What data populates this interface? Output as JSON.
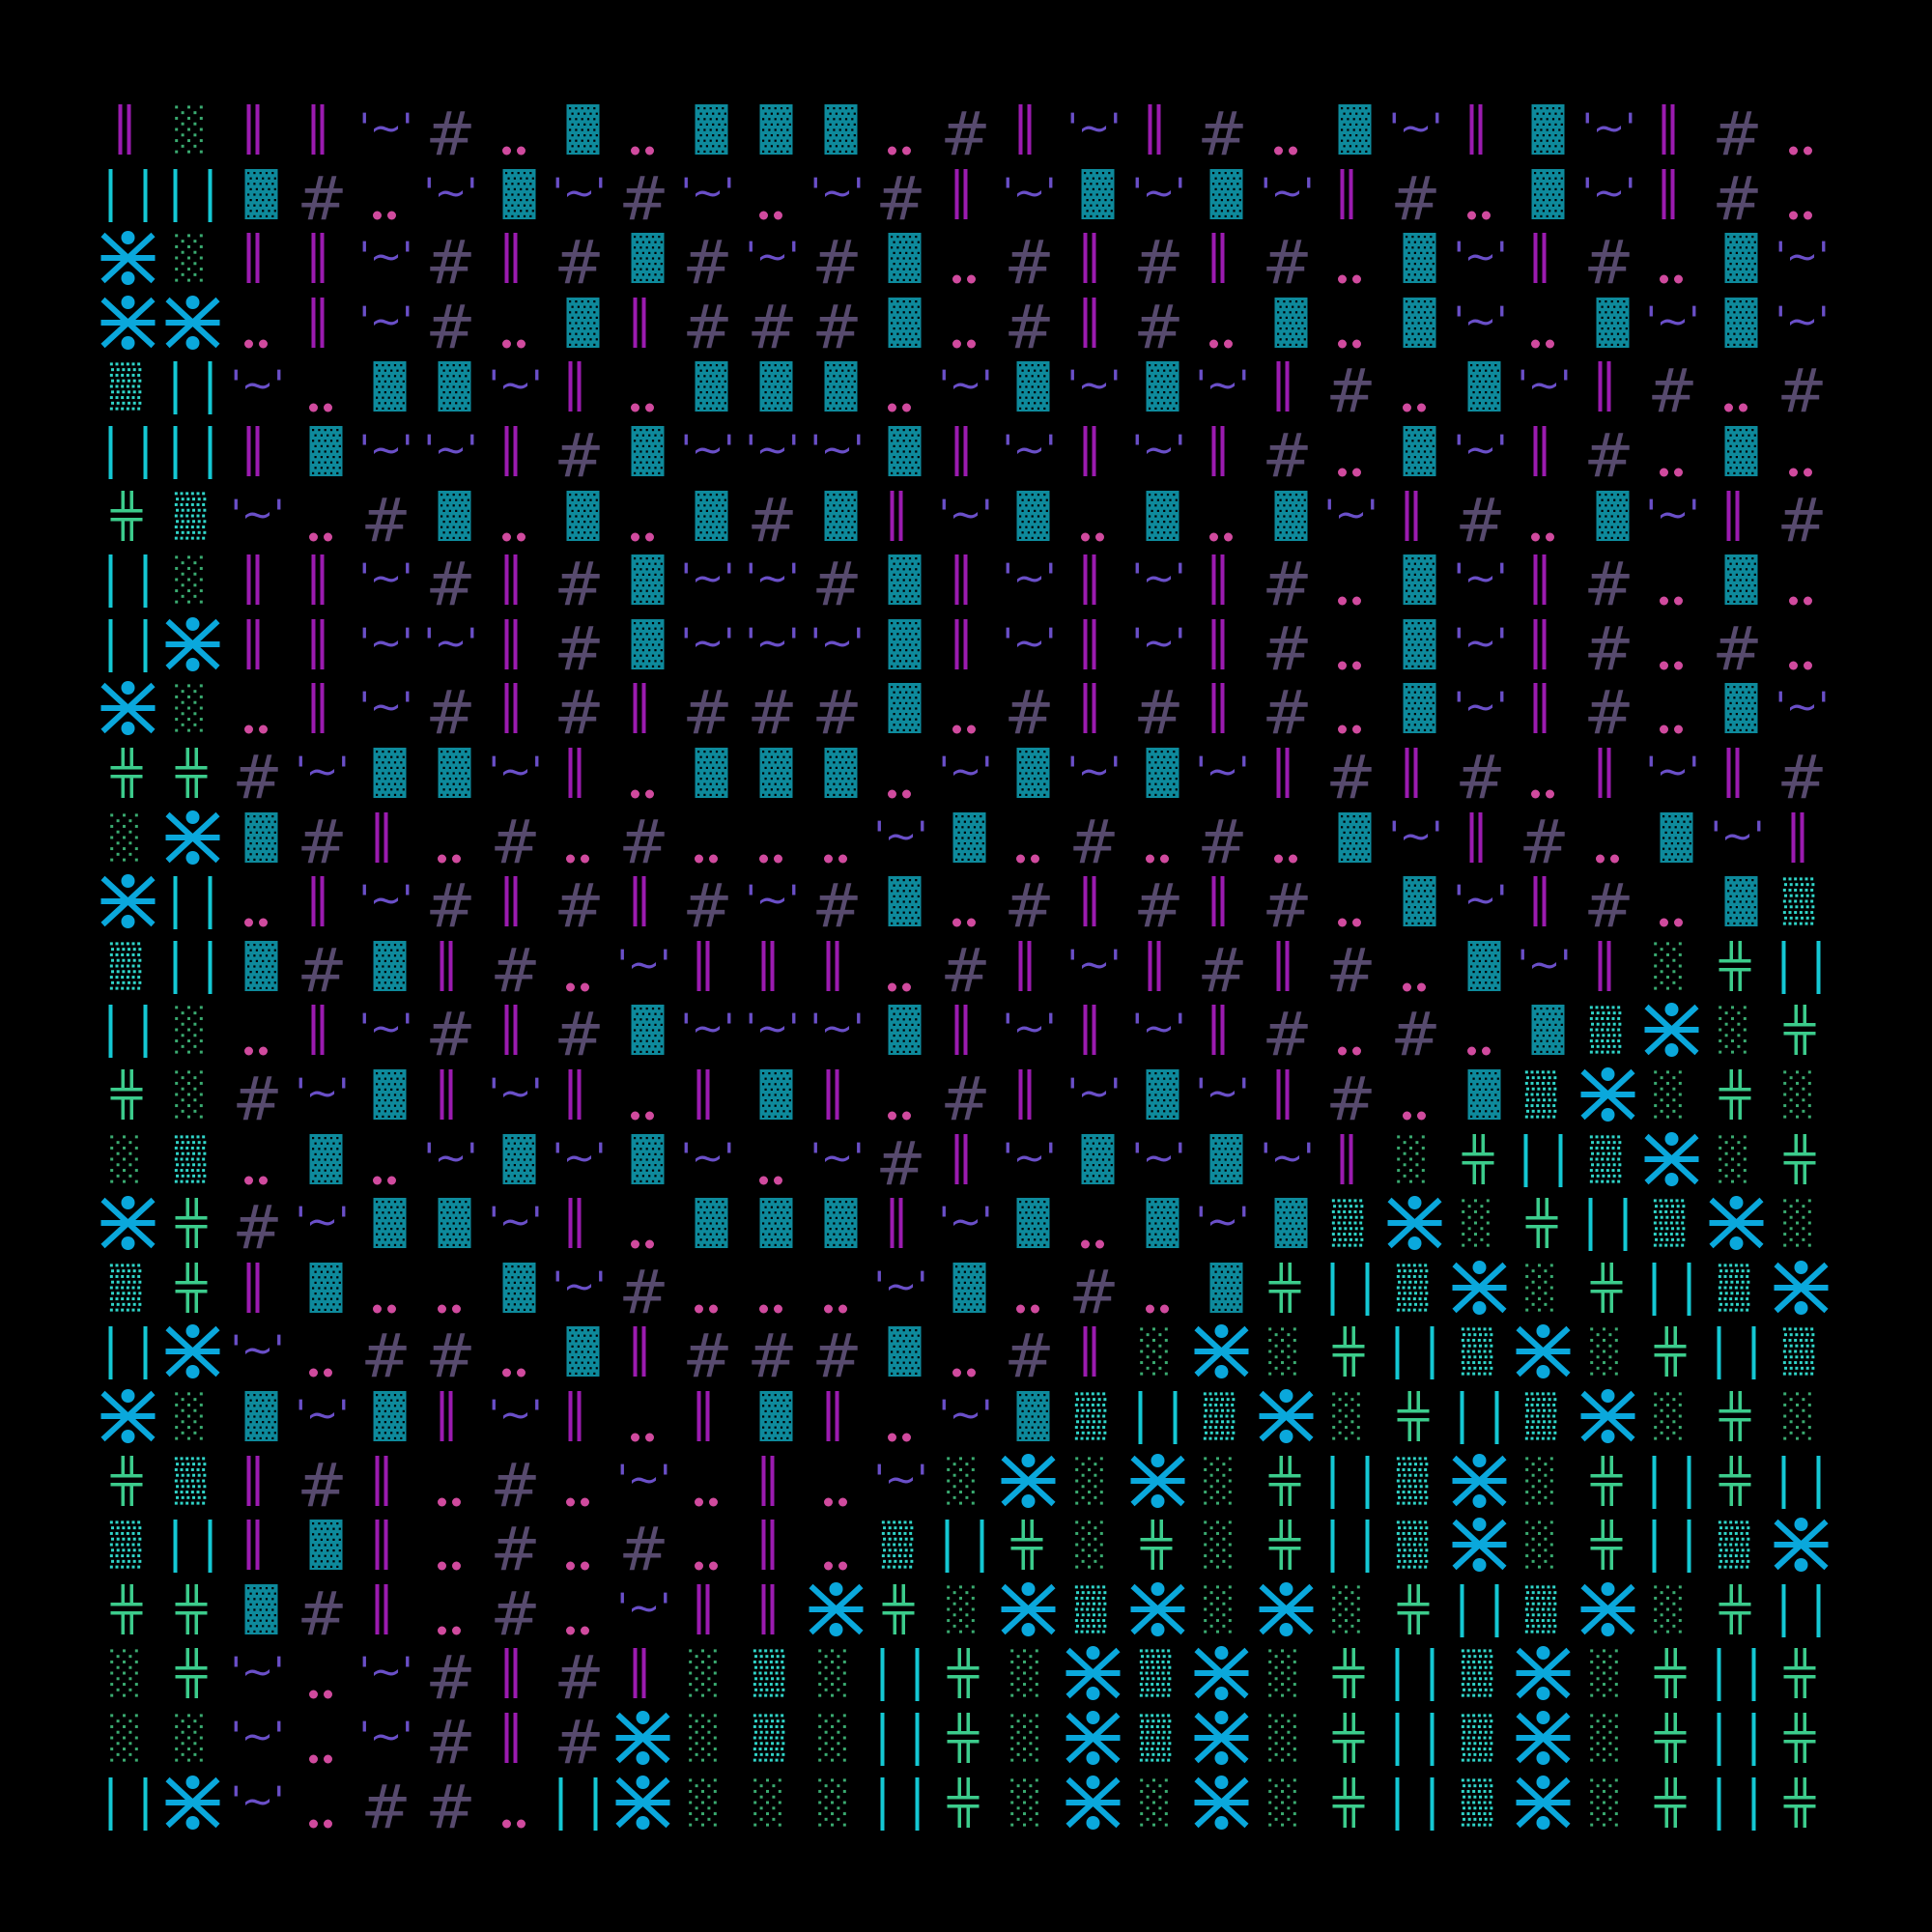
{
  "palette": {
    "background": "#000000",
    "purple_bars": "#9b1bb0",
    "teal_block": "#0e8a9c",
    "hash": "#574a6e",
    "pink_dots": "#d04a9e",
    "violet_tilde": "#6a4fc8",
    "cyan_bars": "#14c8d4",
    "asterisk_figure": "#0aa8dc",
    "green_cross": "#3ccc8c",
    "green_dots": "#3aaa70",
    "cyan_dots": "#30d4c8"
  },
  "glyphs": {
    "P": {
      "name": "double-bar-glyph",
      "char": "||"
    },
    "T": {
      "name": "teal-block-glyph",
      "char": "▓"
    },
    "H": {
      "name": "hash-glyph",
      "char": "#"
    },
    "D": {
      "name": "dots-glyph",
      "char": ".."
    },
    "W": {
      "name": "tilde-glyph",
      "char": "'~'"
    },
    "C": {
      "name": "cyan-bars-glyph",
      "char": "| |"
    },
    "X": {
      "name": "asterisk-figure-glyph",
      "char": "⚹"
    },
    "G": {
      "name": "sparse-dots-glyph",
      "char": "░"
    },
    "S": {
      "name": "dense-dots-glyph",
      "char": "▒"
    },
    "K": {
      "name": "cross-glyph",
      "char": "╬"
    }
  },
  "rows": [
    "PGPPWHDTDTTTDHPWPHDTWPTWPHD",
    "CCTHDWTWHWDWHPWTWTWPHDTWPHD",
    "XGPPWHPHTHWHTDHPHPHDTWPHDTW",
    "XXDPWHDTPHHHTDHPHDTDTWDTWTW",
    "SCWDTTWPDTTTDWTWTWPHDTWPHDH",
    "CCPTWWPHTWWWTPWPWPHDTWPHDTD",
    "KSWDHTDTDTHTPWTDTDTWPHDTWPH",
    "CGPPWHPHTWWHTPWPWPHDTWPHDTD",
    "CXPPWWPHTWWWTPWPWPHDTWPHDHD",
    "XGDPWHPHPHHHTDHPHPHDTWPHDTW",
    "KKHWTTWPDTTTDWTWTWPHPHDPWPH",
    "GXTHPDHDHDDDWTDHDHDTWPHDTWP",
    "XCDPWHPHPHWHTDHPHPHDTWPHDTS",
    "SCTHTPHDWPPPDHPWPHPHDTWPGKC",
    "CGDPWHPHTWWWTPWPWPHDHDTSXGK",
    "KGHWTPWPDPTPDHPWTWPHDTSXGKG",
    "GSDTDWTWTWDWHPWTWTWPGKCSXGK",
    "XKHWTTWPDTTTPWTDTWTSXGKCSXG",
    "SKPTDDTWHDDDWTDHDTKCSXGKCSX",
    "CXWDHHDTPHHHTDHPGXGKCSXGKCS",
    "XGTWTPWPDPTPDWTSCSXGKCSXGKG",
    "KSPHPDHDWDPDWGXGXGKCSXGKCKC",
    "SCPTPDHDHDPDSCKGKGKCSXGKCSX",
    "KKTHPDHDWPPXKGXSXGXGKCSXGKC",
    "GKWDWHPHPGSGCKGXSXGKCSXGKCK",
    "GGWDWHPHXGSGCKGXSXGKCSXGKCK",
    "CXWDHHDCXGGGCKGXGXGKCSXGKCK"
  ]
}
